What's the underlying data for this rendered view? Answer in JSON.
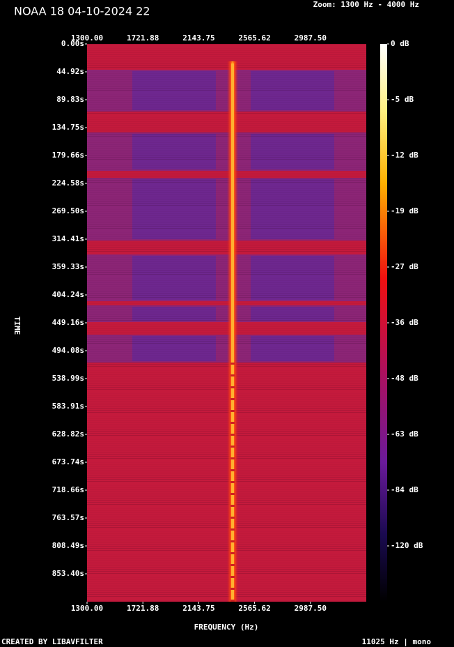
{
  "chart_data": {
    "type": "spectrogram",
    "title": "NOAA 18 04-10-2024 22",
    "subtitle": "Zoom: 1300 Hz - 4000 Hz",
    "x_label": "FREQUENCY (Hz)",
    "y_label": "TIME",
    "footer_left": "CREATED BY LIBAVFILTER",
    "footer_right": "11025 Hz | mono",
    "xlim": [
      1300,
      3409.375
    ],
    "xticks": [
      {
        "value": 1300,
        "label": "1300.00"
      },
      {
        "value": 1721.88,
        "label": "1721.88"
      },
      {
        "value": 2143.75,
        "label": "2143.75"
      },
      {
        "value": 2565.62,
        "label": "2565.62"
      },
      {
        "value": 2987.5,
        "label": "2987.50"
      }
    ],
    "ylim": [
      0,
      898.3
    ],
    "yticks": [
      {
        "value": 0,
        "label": "0.00s"
      },
      {
        "value": 44.92,
        "label": "44.92s"
      },
      {
        "value": 89.83,
        "label": "89.83s"
      },
      {
        "value": 134.75,
        "label": "134.75s"
      },
      {
        "value": 179.66,
        "label": "179.66s"
      },
      {
        "value": 224.58,
        "label": "224.58s"
      },
      {
        "value": 269.5,
        "label": "269.50s"
      },
      {
        "value": 314.41,
        "label": "314.41s"
      },
      {
        "value": 359.33,
        "label": "359.33s"
      },
      {
        "value": 404.24,
        "label": "404.24s"
      },
      {
        "value": 449.16,
        "label": "449.16s"
      },
      {
        "value": 494.08,
        "label": "494.08s"
      },
      {
        "value": 538.99,
        "label": "538.99s"
      },
      {
        "value": 583.91,
        "label": "583.91s"
      },
      {
        "value": 628.82,
        "label": "628.82s"
      },
      {
        "value": 673.74,
        "label": "673.74s"
      },
      {
        "value": 718.66,
        "label": "718.66s"
      },
      {
        "value": 763.57,
        "label": "763.57s"
      },
      {
        "value": 808.49,
        "label": "808.49s"
      },
      {
        "value": 853.4,
        "label": "853.40s"
      }
    ],
    "colorbar_ticks": [
      {
        "value": 0,
        "label": "0 dB"
      },
      {
        "value": -5,
        "label": "-5 dB"
      },
      {
        "value": -12,
        "label": "-12 dB"
      },
      {
        "value": -19,
        "label": "-19 dB"
      },
      {
        "value": -27,
        "label": "-27 dB"
      },
      {
        "value": -36,
        "label": "-36 dB"
      },
      {
        "value": -48,
        "label": "-48 dB"
      },
      {
        "value": -63,
        "label": "-63 dB"
      },
      {
        "value": -84,
        "label": "-84 dB"
      },
      {
        "value": -120,
        "label": "-120 dB"
      }
    ]
  }
}
